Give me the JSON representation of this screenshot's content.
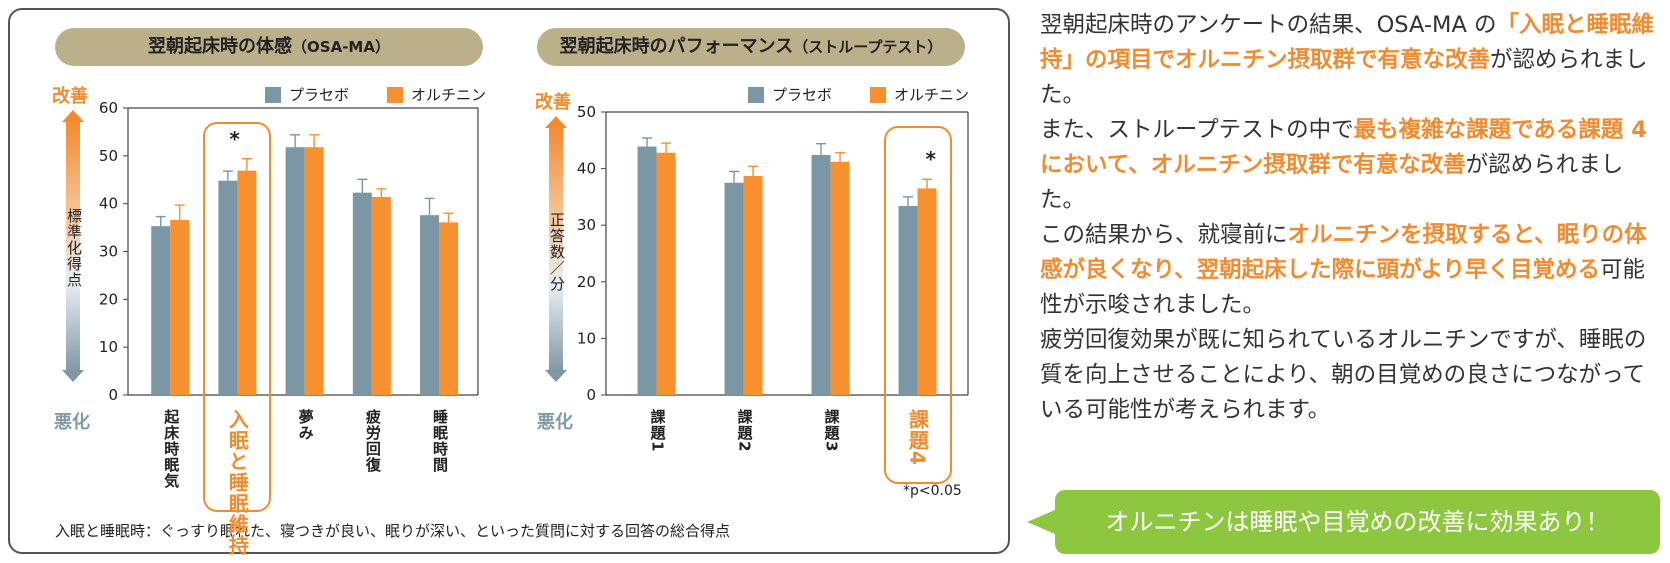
{
  "left_panel": {
    "chart1": {
      "title_main": "翌朝起床時の体感",
      "title_paren": "（OSA-MA）",
      "scale_good": "改善",
      "scale_bad": "悪化",
      "scale_label": "標準化得点",
      "highlight_star": "*"
    },
    "chart2": {
      "title_main": "翌朝起床時のパフォーマンス",
      "title_paren": "（ストループテスト）",
      "scale_good": "改善",
      "scale_bad": "悪化",
      "scale_label": "正答数／分",
      "highlight_star": "*",
      "pvalue": "*p<0.05"
    },
    "legend": {
      "placebo": "プラセボ",
      "ornithine": "オルチニン"
    },
    "footnote": "入眠と睡眠時：ぐっすり眠れた、寝つきが良い、眠りが深い、といった質問に対する回答の総合得点"
  },
  "chart_data": [
    {
      "type": "bar",
      "title": "翌朝起床時の体感（OSA-MA）",
      "ylabel": "標準化得点",
      "categories": [
        "起床時眠気",
        "入眠と睡眠維持",
        "夢み",
        "疲労回復",
        "睡眠時間"
      ],
      "series": [
        {
          "name": "プラセボ",
          "values": [
            35.3,
            44.8,
            51.8,
            42.3,
            37.6
          ],
          "errors": [
            2.0,
            2.0,
            2.6,
            2.8,
            3.5
          ]
        },
        {
          "name": "オルチニン",
          "values": [
            36.6,
            46.9,
            51.8,
            41.4,
            36.1
          ],
          "errors": [
            3.1,
            2.5,
            2.6,
            1.7,
            1.9
          ]
        }
      ],
      "ylim": [
        0,
        60
      ],
      "yticks": [
        0,
        10,
        20,
        30,
        40,
        50,
        60
      ],
      "highlight_index": 1,
      "significant": [
        1
      ],
      "legend_position": "top-right",
      "colors": {
        "placebo": "#7b97a5",
        "ornithine": "#f7902f"
      }
    },
    {
      "type": "bar",
      "title": "翌朝起床時のパフォーマンス（ストループテスト）",
      "ylabel": "正答数／分",
      "categories": [
        "課題1",
        "課題2",
        "課題3",
        "課題4"
      ],
      "series": [
        {
          "name": "プラセボ",
          "values": [
            43.9,
            37.5,
            42.4,
            33.4
          ],
          "errors": [
            1.5,
            2.0,
            2.0,
            1.6
          ]
        },
        {
          "name": "オルチニン",
          "values": [
            42.8,
            38.7,
            41.2,
            36.5
          ],
          "errors": [
            1.7,
            1.7,
            1.6,
            1.6
          ]
        }
      ],
      "ylim": [
        0,
        50
      ],
      "yticks": [
        0,
        10,
        20,
        30,
        40,
        50
      ],
      "highlight_index": 3,
      "significant": [
        3
      ],
      "legend_position": "top-right",
      "colors": {
        "placebo": "#7b97a5",
        "ornithine": "#f7902f"
      }
    }
  ],
  "text_block": {
    "p1_a": "翌朝起床時のアンケートの結果、OSA-MA の",
    "p1_em": "「入眠と睡眠維持」の項目でオルニチン摂取群で有意な改善",
    "p1_b": "が認められました。",
    "p2_a": "また、ストループテストの中で",
    "p2_em": "最も複雑な課題である課題 4 において、オルニチン摂取群で有意な改善",
    "p2_b": "が認められました。",
    "p3_a": "この結果から、就寝前に",
    "p3_em": "オルニチンを摂取すると、眠りの体感が良くなり、翌朝起床した際に頭がより早く目覚める",
    "p3_b": "可能性が示唆されました。",
    "p4": "疲労回復効果が既に知られているオルニチンですが、睡眠の質を向上させることにより、朝の目覚めの良さにつながっている可能性が考えられます。"
  },
  "callout": "オルニチンは睡眠や目覚めの改善に効果あり！"
}
